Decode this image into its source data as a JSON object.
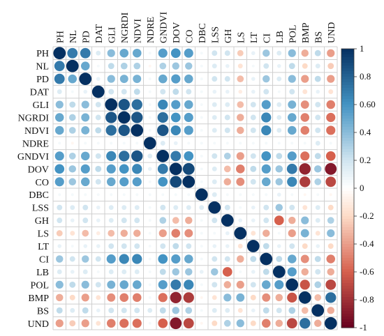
{
  "chart_data": {
    "type": "heatmap",
    "style": "correlation-circles",
    "variables": [
      "PH",
      "NL",
      "PD",
      "DAT",
      "GLI",
      "NGRDI",
      "NDVI",
      "NDRE",
      "GNDVI",
      "DOV",
      "CO",
      "DBC",
      "LSS",
      "GH",
      "LS",
      "LT",
      "CI",
      "LB",
      "POL",
      "BMP",
      "BS",
      "UND"
    ],
    "matrix": [
      [
        1,
        0.7,
        0.7,
        0.15,
        0.4,
        0.5,
        0.5,
        0.05,
        0.55,
        0.6,
        0.55,
        0.05,
        0.2,
        0.2,
        -0.25,
        0.1,
        0.35,
        0.15,
        0.4,
        -0.35,
        0.25,
        -0.4
      ],
      [
        0.7,
        1,
        0.5,
        0.05,
        0.25,
        0.3,
        0.3,
        -0.05,
        0.3,
        0.35,
        0.35,
        0.05,
        0.15,
        0.1,
        -0.15,
        0.05,
        0.2,
        0.1,
        0.25,
        -0.2,
        0.15,
        -0.25
      ],
      [
        0.7,
        0.5,
        1,
        0.1,
        0.4,
        0.45,
        0.45,
        0.05,
        0.5,
        0.55,
        0.5,
        0.05,
        0.2,
        0.2,
        -0.3,
        0.1,
        0.35,
        0.15,
        0.4,
        -0.4,
        0.25,
        -0.4
      ],
      [
        0.15,
        0.05,
        0.1,
        1,
        0.2,
        0.2,
        0.25,
        0.05,
        0.2,
        0.25,
        0.2,
        0.05,
        0.1,
        0.1,
        -0.1,
        0.1,
        0.2,
        0.05,
        0.2,
        -0.15,
        0.1,
        -0.15
      ],
      [
        0.4,
        0.25,
        0.4,
        0.2,
        1,
        0.85,
        0.75,
        0.05,
        0.65,
        0.55,
        0.5,
        0.05,
        0.15,
        0.15,
        -0.3,
        0.2,
        0.55,
        0.15,
        0.45,
        -0.45,
        0.2,
        -0.5
      ],
      [
        0.5,
        0.3,
        0.45,
        0.2,
        0.85,
        1,
        0.85,
        0.05,
        0.75,
        0.6,
        0.55,
        0.05,
        0.15,
        0.2,
        -0.35,
        0.2,
        0.65,
        0.15,
        0.5,
        -0.5,
        0.2,
        -0.55
      ],
      [
        0.5,
        0.3,
        0.45,
        0.25,
        0.75,
        0.85,
        1,
        0.05,
        0.85,
        0.65,
        0.55,
        0.05,
        0.15,
        0.2,
        -0.35,
        0.2,
        0.65,
        0.15,
        0.5,
        -0.5,
        0.2,
        -0.55
      ],
      [
        0.05,
        -0.05,
        0.05,
        0.05,
        0.05,
        0.05,
        0.05,
        1,
        0.15,
        0.1,
        0.05,
        0.05,
        0.05,
        0.05,
        0.05,
        0.05,
        0.05,
        0.05,
        0.05,
        0.05,
        0.15,
        0.05
      ],
      [
        0.55,
        0.3,
        0.5,
        0.2,
        0.65,
        0.75,
        0.85,
        0.15,
        1,
        0.7,
        0.6,
        0.05,
        0.2,
        0.3,
        -0.4,
        0.2,
        0.6,
        0.25,
        0.55,
        -0.55,
        0.25,
        -0.6
      ],
      [
        0.6,
        0.35,
        0.55,
        0.25,
        0.55,
        0.6,
        0.65,
        0.1,
        0.7,
        1,
        0.9,
        0.05,
        0.15,
        -0.3,
        -0.5,
        0.25,
        0.55,
        0.35,
        0.7,
        -0.85,
        0.35,
        -0.9
      ],
      [
        0.55,
        0.35,
        0.5,
        0.2,
        0.5,
        0.55,
        0.55,
        0.05,
        0.6,
        0.9,
        1,
        0.05,
        0.15,
        -0.35,
        -0.45,
        0.2,
        0.5,
        0.35,
        0.65,
        -0.75,
        0.3,
        -0.7
      ],
      [
        0.05,
        0.05,
        0.05,
        0.05,
        0.05,
        0.05,
        0.05,
        0.05,
        0.05,
        0.05,
        0.05,
        1,
        0.15,
        0.05,
        0.05,
        0.05,
        0.05,
        0.1,
        0.05,
        -0.05,
        0.05,
        -0.05
      ],
      [
        0.2,
        0.15,
        0.2,
        0.1,
        0.15,
        0.15,
        0.15,
        0.05,
        0.2,
        0.15,
        0.15,
        0.15,
        1,
        0.2,
        0.05,
        0.1,
        0.2,
        0.35,
        0.2,
        -0.15,
        0.15,
        -0.2
      ],
      [
        0.2,
        0.1,
        0.2,
        0.1,
        0.15,
        0.2,
        0.2,
        0.05,
        0.3,
        -0.3,
        -0.35,
        0.05,
        0.2,
        1,
        0.1,
        0.1,
        0.2,
        -0.6,
        -0.35,
        0.4,
        0.15,
        0.3
      ],
      [
        -0.25,
        -0.15,
        -0.3,
        -0.1,
        -0.3,
        -0.35,
        -0.35,
        0.05,
        -0.4,
        -0.5,
        -0.45,
        0.05,
        0.05,
        0.1,
        1,
        -0.15,
        -0.35,
        0.05,
        -0.4,
        0.45,
        -0.15,
        0.4
      ],
      [
        0.1,
        0.05,
        0.1,
        0.1,
        0.2,
        0.2,
        0.2,
        0.05,
        0.2,
        0.25,
        0.2,
        0.05,
        0.1,
        0.1,
        -0.15,
        1,
        0.25,
        0.1,
        0.2,
        -0.2,
        0.1,
        -0.2
      ],
      [
        0.35,
        0.2,
        0.35,
        0.2,
        0.55,
        0.65,
        0.65,
        0.05,
        0.6,
        0.55,
        0.5,
        0.05,
        0.2,
        0.2,
        -0.35,
        0.25,
        1,
        0.25,
        0.5,
        -0.45,
        0.25,
        -0.5
      ],
      [
        0.15,
        0.1,
        0.15,
        0.05,
        0.15,
        0.15,
        0.15,
        0.05,
        0.25,
        0.35,
        0.35,
        0.1,
        0.35,
        -0.6,
        0.05,
        0.1,
        0.25,
        1,
        0.55,
        -0.35,
        0.2,
        -0.35
      ],
      [
        0.4,
        0.25,
        0.4,
        0.2,
        0.45,
        0.5,
        0.5,
        0.05,
        0.55,
        0.7,
        0.65,
        0.05,
        0.2,
        -0.35,
        -0.4,
        0.2,
        0.5,
        0.55,
        1,
        -0.65,
        0.3,
        -0.7
      ],
      [
        -0.35,
        -0.2,
        -0.4,
        -0.15,
        -0.45,
        -0.5,
        -0.5,
        0.05,
        -0.55,
        -0.85,
        -0.75,
        -0.05,
        -0.15,
        0.4,
        0.45,
        -0.2,
        -0.45,
        -0.35,
        -0.65,
        1,
        -0.3,
        0.75
      ],
      [
        0.25,
        0.15,
        0.25,
        0.1,
        0.2,
        0.2,
        0.2,
        0.15,
        0.25,
        0.35,
        0.3,
        0.05,
        0.15,
        0.15,
        -0.15,
        0.1,
        0.25,
        0.2,
        0.3,
        -0.3,
        1,
        -0.35
      ],
      [
        -0.4,
        -0.25,
        -0.4,
        -0.15,
        -0.5,
        -0.55,
        -0.55,
        0.05,
        -0.6,
        -0.9,
        -0.7,
        -0.05,
        -0.2,
        0.3,
        0.4,
        -0.2,
        -0.5,
        -0.35,
        -0.7,
        0.75,
        -0.35,
        1
      ]
    ],
    "colorbar": {
      "range": [
        -1,
        1
      ],
      "ticks": [
        "1",
        "0.8",
        "0.60",
        "0.4",
        "0.2",
        "0",
        "-0.2",
        "-0.4",
        "-0.6",
        "-0.8",
        "-1"
      ]
    },
    "colors": {
      "negative": "#67001f",
      "mid": "#ffffff",
      "positive": "#053061"
    }
  }
}
